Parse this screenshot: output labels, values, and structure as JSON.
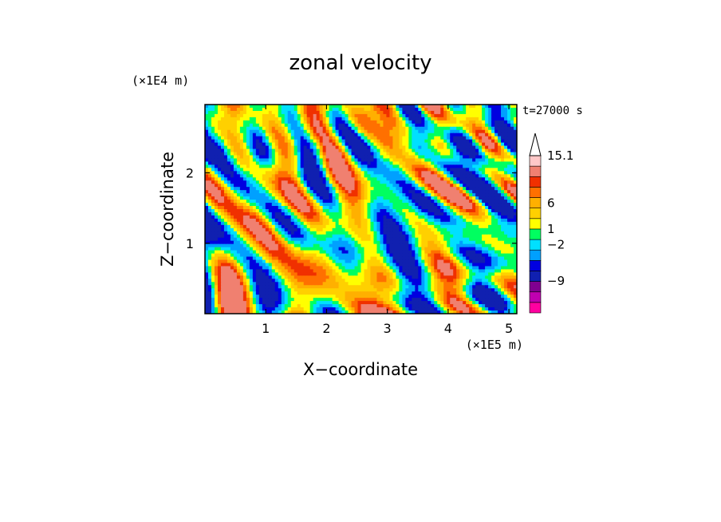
{
  "chart_data": {
    "type": "heatmap",
    "title": "zonal velocity",
    "time_label": "t=27000 s",
    "xlabel": "X−coordinate",
    "ylabel": "Z−coordinate",
    "x_unit": "(×1E5 m)",
    "y_unit": "(×1E4 m)",
    "xlim": [
      0,
      5.13
    ],
    "ylim": [
      0,
      2.97
    ],
    "x_ticks": [
      1,
      2,
      3,
      4,
      5
    ],
    "y_ticks": [
      1,
      2
    ],
    "x_tick_labels": [
      "1",
      "2",
      "3",
      "4",
      "5"
    ],
    "y_tick_labels": [
      "1",
      "2"
    ],
    "colorbar": {
      "levels_min": -15.1,
      "levels_max": 15.1,
      "extend": "max",
      "tick_labels": [
        "15.1",
        "6",
        "1",
        "−2",
        "−9"
      ],
      "tick_values": [
        15.1,
        6,
        1,
        -2,
        -9
      ],
      "bins": [
        {
          "color": "#ff00a0"
        },
        {
          "color": "#c000b0"
        },
        {
          "color": "#800090"
        },
        {
          "color": "#1020b0"
        },
        {
          "color": "#0000e0"
        },
        {
          "color": "#00a0ff"
        },
        {
          "color": "#00e0ff"
        },
        {
          "color": "#00ff60"
        },
        {
          "color": "#ffff00"
        },
        {
          "color": "#ffd000"
        },
        {
          "color": "#ffb000"
        },
        {
          "color": "#ff7000"
        },
        {
          "color": "#f03000"
        },
        {
          "color": "#f08070"
        },
        {
          "color": "#ffc8c8"
        }
      ]
    }
  }
}
